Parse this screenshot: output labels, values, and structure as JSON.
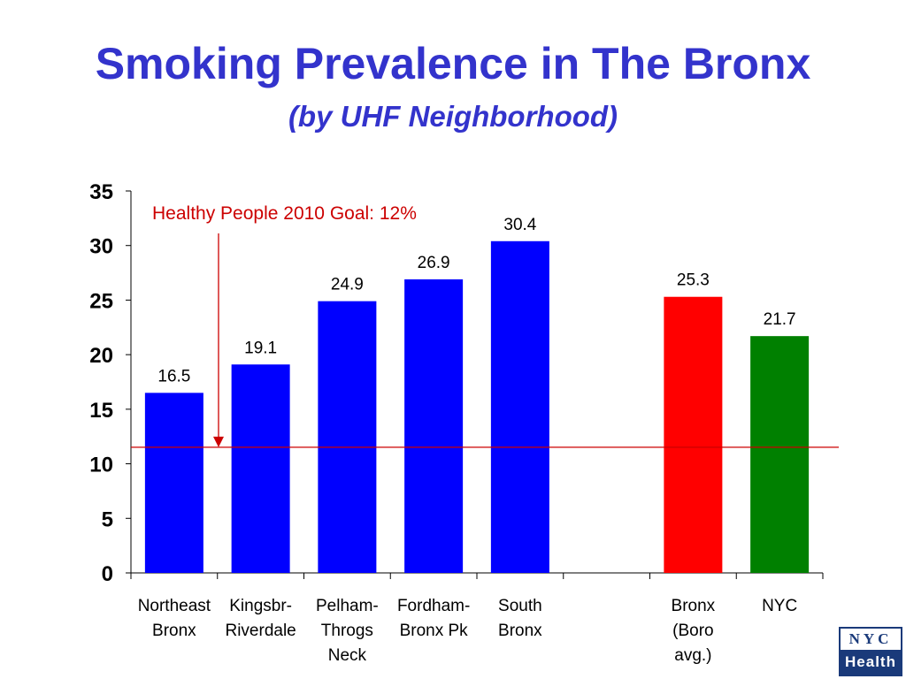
{
  "title": "Smoking Prevalence in The Bronx",
  "subtitle": "(by UHF Neighborhood)",
  "logo": {
    "top": "NYC",
    "bottom": "Health"
  },
  "chart_data": {
    "type": "bar",
    "categories": [
      [
        "Northeast",
        "Bronx"
      ],
      [
        "Kingsbr-",
        "Riverdale"
      ],
      [
        "Pelham-",
        "Throgs",
        "Neck"
      ],
      [
        "Fordham-",
        "Bronx Pk"
      ],
      [
        "South",
        "Bronx"
      ],
      [
        ""
      ],
      [
        "Bronx",
        "(Boro",
        "avg.)"
      ],
      [
        "NYC"
      ]
    ],
    "values": [
      16.5,
      19.1,
      24.9,
      26.9,
      30.4,
      null,
      25.3,
      21.7
    ],
    "value_labels": [
      "16.5",
      "19.1",
      "24.9",
      "26.9",
      "30.4",
      "",
      "25.3",
      "21.7"
    ],
    "colors": [
      "#0000ff",
      "#0000ff",
      "#0000ff",
      "#0000ff",
      "#0000ff",
      "",
      "#ff0000",
      "#008000"
    ],
    "ylim": [
      0,
      35
    ],
    "yticks": [
      0,
      5,
      10,
      15,
      20,
      25,
      30,
      35
    ],
    "reference_line": {
      "value": 12,
      "color": "#cc0000"
    },
    "annotation": {
      "text": "Healthy People 2010 Goal: 12%",
      "color": "#cc0000"
    },
    "grid": false
  }
}
